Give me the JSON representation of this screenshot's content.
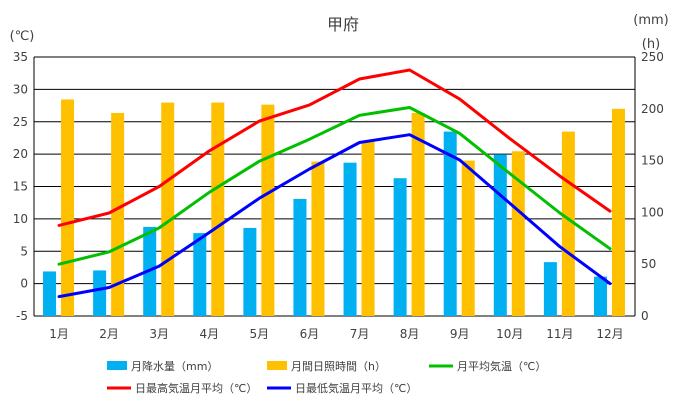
{
  "chart_data": {
    "type": "bar+line",
    "title": "甲府",
    "left_unit": "(℃)",
    "right_unit_top": "(mm)",
    "right_unit_bottom": "(h)",
    "categories": [
      "1月",
      "2月",
      "3月",
      "4月",
      "5月",
      "6月",
      "7月",
      "8月",
      "9月",
      "10月",
      "11月",
      "12月"
    ],
    "ylim_left": [
      -5,
      35
    ],
    "ylim_right": [
      0,
      250
    ],
    "yticks_left": [
      -5,
      0,
      5,
      10,
      15,
      20,
      25,
      30,
      35
    ],
    "yticks_right": [
      0,
      50,
      100,
      150,
      200,
      250
    ],
    "grid": true,
    "legend_position": "bottom",
    "bars": [
      {
        "name": "月降水量（mm）",
        "color": "#00b0f0",
        "axis": "right",
        "values": [
          43,
          44,
          86,
          80,
          85,
          113,
          148,
          133,
          178,
          156,
          52,
          38
        ]
      },
      {
        "name": "月間日照時間（h）",
        "color": "#ffc000",
        "axis": "right",
        "values": [
          209,
          196,
          206,
          206,
          204,
          149,
          169,
          196,
          150,
          159,
          178,
          200
        ]
      }
    ],
    "lines": [
      {
        "name": "月平均気温（℃）",
        "color": "#00c000",
        "axis": "left",
        "values": [
          3.0,
          4.9,
          8.6,
          14.1,
          18.9,
          22.3,
          26.0,
          27.2,
          23.2,
          17.0,
          10.9,
          5.4
        ]
      },
      {
        "name": "日最高気温月平均（℃）",
        "color": "#ff0000",
        "axis": "left",
        "values": [
          9.0,
          10.9,
          15.0,
          20.5,
          25.1,
          27.6,
          31.6,
          33.0,
          28.5,
          22.4,
          16.6,
          11.2
        ]
      },
      {
        "name": "日最低気温月平均（℃）",
        "color": "#0000ff",
        "axis": "left",
        "values": [
          -2.0,
          -0.6,
          2.7,
          7.9,
          13.2,
          17.7,
          21.8,
          23.0,
          19.1,
          12.4,
          5.7,
          0.0
        ]
      }
    ]
  }
}
